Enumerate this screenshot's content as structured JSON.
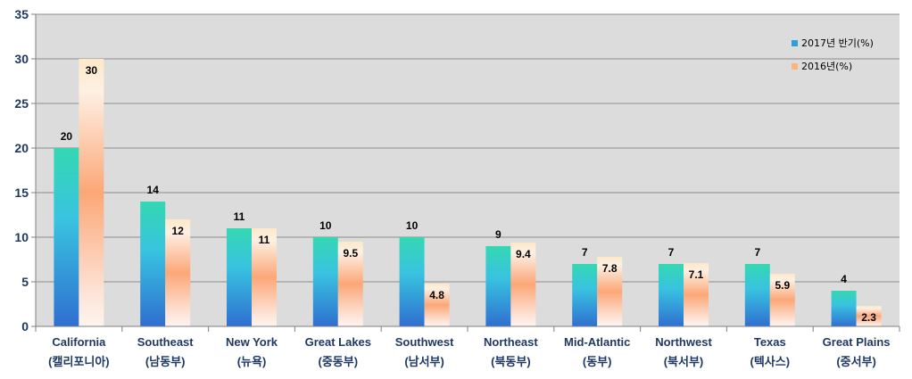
{
  "chart_data": {
    "type": "bar",
    "title": "",
    "xlabel": "",
    "ylabel": "",
    "ylim": [
      0,
      35
    ],
    "yticks": [
      0,
      5,
      10,
      15,
      20,
      25,
      30,
      35
    ],
    "grid": true,
    "legend_position": "top-right",
    "categories": [
      [
        "California",
        "(캘리포니아)"
      ],
      [
        "Southeast",
        "(남동부)"
      ],
      [
        "New York",
        "(뉴욕)"
      ],
      [
        "Great Lakes",
        "(중동부)"
      ],
      [
        "Southwest",
        "(남서부)"
      ],
      [
        "Northeast",
        "(북동부)"
      ],
      [
        "Mid-Atlantic",
        "(동부)"
      ],
      [
        "Northwest",
        "(북서부)"
      ],
      [
        "Texas",
        "(텍사스)"
      ],
      [
        "Great Plains",
        "(중서부)"
      ]
    ],
    "series": [
      {
        "name": "2017년 반기(%)",
        "color": "#2e9fd8",
        "values": [
          20,
          14,
          11,
          10,
          10,
          9,
          7,
          7,
          7,
          4
        ]
      },
      {
        "name": "2016년(%)",
        "color": "#fbb47a",
        "values": [
          30,
          12,
          11,
          9.5,
          4.8,
          9.4,
          7.8,
          7.1,
          5.9,
          2.3
        ]
      }
    ]
  }
}
